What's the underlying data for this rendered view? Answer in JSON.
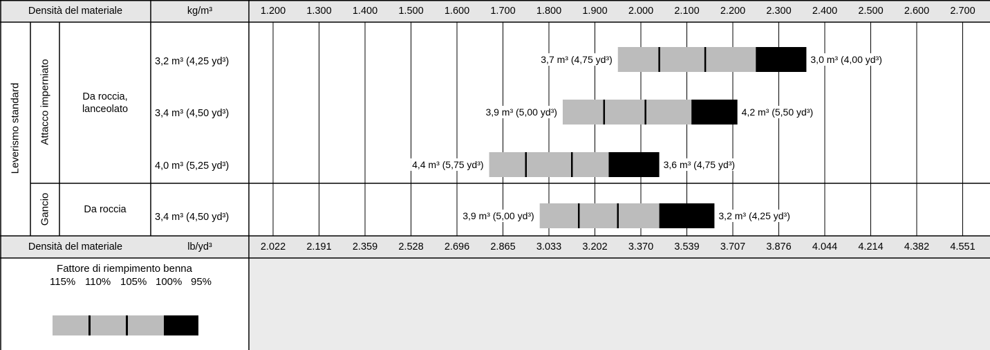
{
  "header_top": {
    "label": "Densità del materiale",
    "unit": "kg/m³"
  },
  "header_bottom": {
    "label": "Densità del materiale",
    "unit": "lb/yd³"
  },
  "groups": {
    "linkage": "Leverismo standard",
    "pinned": "Attacco imperniato",
    "hook": "Gancio"
  },
  "bucket_types": {
    "rock_spade": "Da roccia, lanceolato",
    "rock": "Da roccia"
  },
  "legend": {
    "title": "Fattore di riempimento benna",
    "percents": [
      "115%",
      "110%",
      "105%",
      "100%",
      "95%"
    ],
    "colors": {
      "fill": "#bcbcbc",
      "dark": "#000000"
    }
  },
  "chart_data": {
    "type": "bar",
    "x_top_ticks": [
      "1.200",
      "1.300",
      "1.400",
      "1.500",
      "1.600",
      "1.700",
      "1.800",
      "1.900",
      "2.000",
      "2.100",
      "2.200",
      "2.300",
      "2.400",
      "2.500",
      "2.600",
      "2.700"
    ],
    "x_top_values": [
      1200,
      1300,
      1400,
      1500,
      1600,
      1700,
      1800,
      1900,
      2000,
      2100,
      2200,
      2300,
      2400,
      2500,
      2600,
      2700
    ],
    "x_bottom_ticks": [
      "2.022",
      "2.191",
      "2.359",
      "2.528",
      "2.696",
      "2.865",
      "3.033",
      "3.202",
      "3.370",
      "3.539",
      "3.707",
      "3.876",
      "4.044",
      "4.214",
      "4.382",
      "4.551"
    ],
    "rows": [
      {
        "capacity": "3,2 m³ (4,25 yd³)",
        "left_label": "3,7 m³ (4,75 yd³)",
        "right_label": "3,0 m³ (4,00 yd³)",
        "marks_kg_m3": [
          1950,
          2040,
          2140,
          2250,
          2360
        ]
      },
      {
        "capacity": "3,4 m³ (4,50 yd³)",
        "left_label": "3,9 m³ (5,00 yd³)",
        "right_label": "4,2 m³ (5,50 yd³)",
        "marks_kg_m3": [
          1830,
          1920,
          2010,
          2110,
          2210
        ]
      },
      {
        "capacity": "4,0 m³ (5,25 yd³)",
        "left_label": "4,4 m³ (5,75 yd³)",
        "right_label": "3,6 m³ (4,75 yd³)",
        "marks_kg_m3": [
          1670,
          1750,
          1850,
          1930,
          2040
        ]
      },
      {
        "capacity": "3,4 m³ (4,50 yd³)",
        "left_label": "3,9 m³ (5,00 yd³)",
        "right_label": "3,2 m³ (4,25 yd³)",
        "marks_kg_m3": [
          1780,
          1865,
          1950,
          2040,
          2160
        ]
      }
    ],
    "colors": {
      "fill": "#bcbcbc",
      "dark": "#000000"
    }
  }
}
